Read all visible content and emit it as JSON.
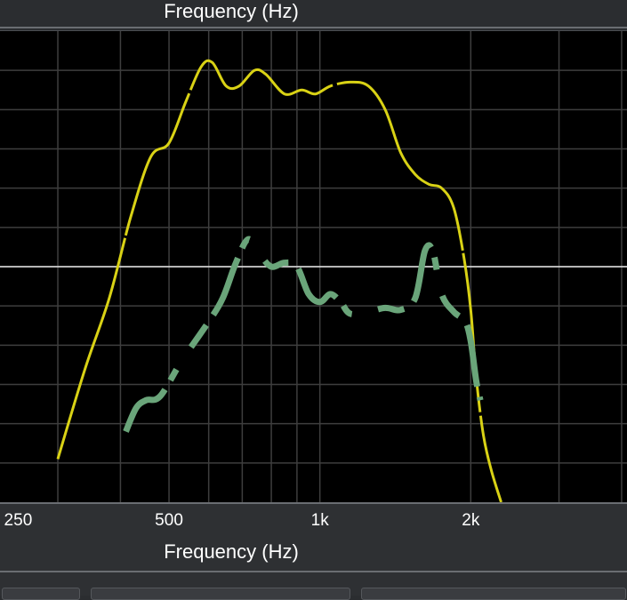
{
  "chart_data": {
    "type": "line",
    "title": "Frequency (Hz)",
    "xlabel": "Frequency (Hz)",
    "x_scale": "log",
    "xlim": [
      230,
      4100
    ],
    "ylim": [
      0,
      12
    ],
    "grid": true,
    "x_ticks": [
      {
        "value": 250,
        "label": "250"
      },
      {
        "value": 500,
        "label": "500"
      },
      {
        "value": 1000,
        "label": "1k"
      },
      {
        "value": 2000,
        "label": "2k"
      }
    ],
    "reference_line_y": 6,
    "series": [
      {
        "color": "#d9d215",
        "style": "solid",
        "points": [
          [
            300,
            1.1
          ],
          [
            340,
            3.4
          ],
          [
            380,
            5.2
          ],
          [
            420,
            7.3
          ],
          [
            460,
            8.8
          ],
          [
            500,
            9.15
          ],
          [
            540,
            10.2
          ],
          [
            580,
            11.1
          ],
          [
            610,
            11.2
          ],
          [
            650,
            10.6
          ],
          [
            690,
            10.6
          ],
          [
            740,
            11.0
          ],
          [
            780,
            10.9
          ],
          [
            850,
            10.4
          ],
          [
            920,
            10.5
          ],
          [
            980,
            10.4
          ],
          [
            1050,
            10.6
          ],
          [
            1150,
            10.7
          ],
          [
            1250,
            10.6
          ],
          [
            1350,
            10.0
          ],
          [
            1450,
            8.9
          ],
          [
            1550,
            8.35
          ],
          [
            1650,
            8.1
          ],
          [
            1750,
            8.0
          ],
          [
            1850,
            7.5
          ],
          [
            1940,
            6.2
          ],
          [
            2000,
            4.9
          ],
          [
            2050,
            3.2
          ],
          [
            2120,
            1.7
          ],
          [
            2200,
            0.8
          ],
          [
            2300,
            0.0
          ]
        ]
      },
      {
        "color": "#6aa57a",
        "style": "thick-dashed",
        "points": [
          [
            410,
            1.8
          ],
          [
            430,
            2.4
          ],
          [
            450,
            2.6
          ],
          [
            480,
            2.7
          ],
          [
            530,
            3.6
          ],
          [
            600,
            4.6
          ],
          [
            640,
            5.2
          ],
          [
            680,
            6.1
          ],
          [
            720,
            6.7
          ],
          [
            760,
            6.3
          ],
          [
            800,
            6.0
          ],
          [
            850,
            6.1
          ],
          [
            900,
            6.0
          ],
          [
            950,
            5.3
          ],
          [
            1000,
            5.1
          ],
          [
            1050,
            5.3
          ],
          [
            1100,
            5.1
          ],
          [
            1150,
            4.8
          ],
          [
            1250,
            4.85
          ],
          [
            1350,
            4.95
          ],
          [
            1450,
            4.9
          ],
          [
            1550,
            5.2
          ],
          [
            1620,
            6.4
          ],
          [
            1680,
            6.4
          ],
          [
            1750,
            5.3
          ],
          [
            1850,
            4.85
          ],
          [
            1950,
            4.6
          ],
          [
            2000,
            4.1
          ],
          [
            2050,
            3.1
          ],
          [
            2090,
            2.6
          ]
        ]
      }
    ]
  }
}
